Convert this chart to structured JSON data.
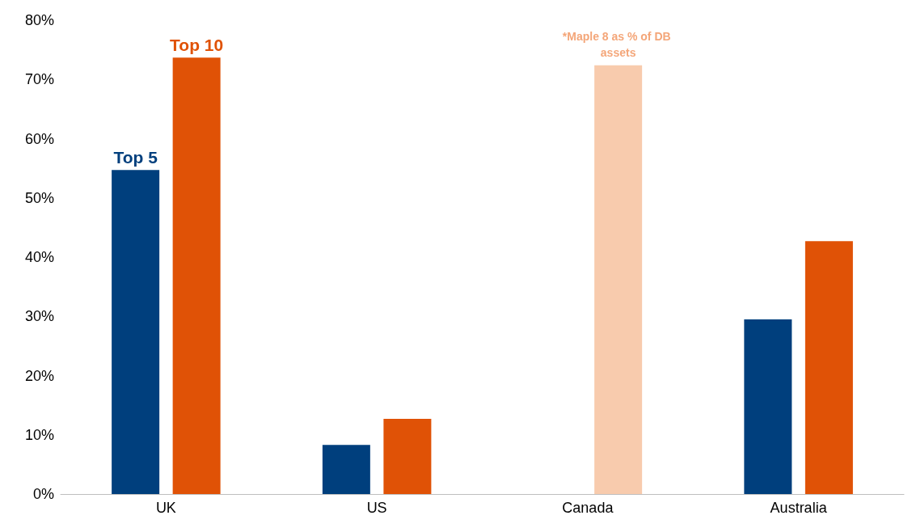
{
  "chart_data": {
    "type": "bar",
    "categories": [
      "UK",
      "US",
      "Canada",
      "Australia"
    ],
    "series": [
      {
        "name": "Top 5",
        "color": "#003f7d",
        "values": [
          54.7,
          8.3,
          null,
          29.5
        ]
      },
      {
        "name": "Top 10",
        "color": "#e05206",
        "colors": [
          "#e05206",
          "#e05206",
          "#f8cbad",
          "#e05206"
        ],
        "values": [
          73.7,
          12.7,
          72.4,
          42.7
        ]
      }
    ],
    "ylim": [
      0,
      80
    ],
    "yticks": [
      {
        "value": 0,
        "label": "0%"
      },
      {
        "value": 10,
        "label": "10%"
      },
      {
        "value": 20,
        "label": "20%"
      },
      {
        "value": 30,
        "label": "30%"
      },
      {
        "value": 40,
        "label": "40%"
      },
      {
        "value": 50,
        "label": "50%"
      },
      {
        "value": 60,
        "label": "60%"
      },
      {
        "value": 70,
        "label": "70%"
      },
      {
        "value": 80,
        "label": "80%"
      }
    ],
    "annotations": [
      "*Maple 8 as % of DB assets"
    ],
    "grid": false,
    "legend": false
  }
}
